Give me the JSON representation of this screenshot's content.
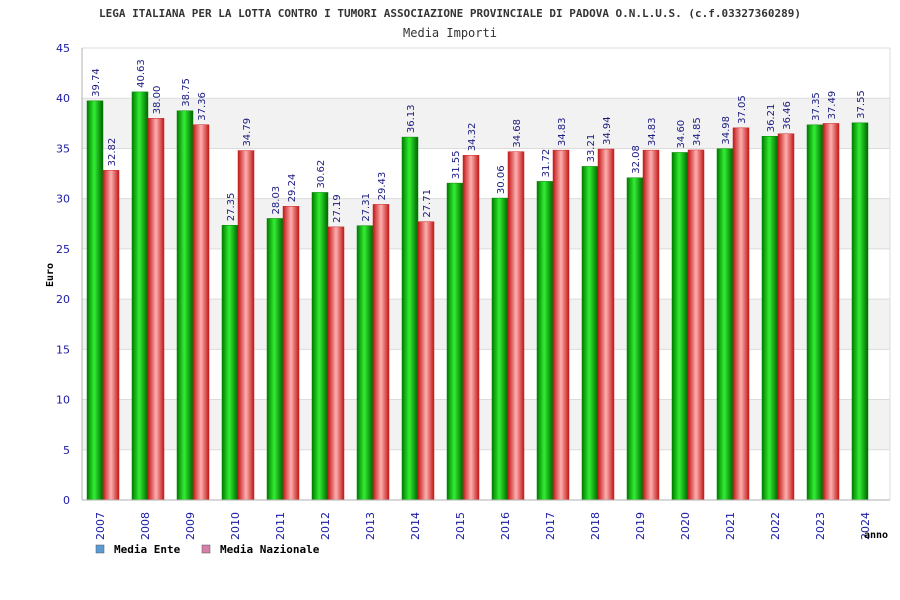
{
  "chart_data": {
    "type": "bar",
    "title": "LEGA ITALIANA PER LA LOTTA CONTRO I TUMORI ASSOCIAZIONE PROVINCIALE DI PADOVA O.N.L.U.S. (c.f.03327360289)",
    "subtitle": "Media Importi",
    "xlabel": "anno",
    "ylabel": "Euro",
    "ylim": [
      0,
      45
    ],
    "yticks": [
      0,
      5,
      10,
      15,
      20,
      25,
      30,
      35,
      40,
      45
    ],
    "categories": [
      "2007",
      "2008",
      "2009",
      "2010",
      "2011",
      "2012",
      "2013",
      "2014",
      "2015",
      "2016",
      "2017",
      "2018",
      "2019",
      "2020",
      "2021",
      "2022",
      "2023",
      "2024"
    ],
    "series": [
      {
        "name": "Media Ente",
        "legend_color": "#5b9bd5",
        "bar_color": "#00b000",
        "values": [
          39.74,
          40.63,
          38.75,
          27.35,
          28.03,
          30.62,
          27.31,
          36.13,
          31.55,
          30.06,
          31.72,
          33.21,
          32.08,
          34.6,
          34.98,
          36.21,
          37.35,
          37.55
        ],
        "labels": [
          "39.74",
          "40.63",
          "38.75",
          "27.35",
          "28.03",
          "30.62",
          "27.31",
          "36.13",
          "31.55",
          "30.06",
          "31.72",
          "33.21",
          "32.08",
          "34.60",
          "34.98",
          "36.21",
          "37.35",
          "37.55"
        ]
      },
      {
        "name": "Media Nazionale",
        "legend_color": "#d67fa8",
        "bar_color": "#e04040",
        "values": [
          32.82,
          38.0,
          37.36,
          34.79,
          29.24,
          27.19,
          29.43,
          27.71,
          34.32,
          34.68,
          34.83,
          34.94,
          34.83,
          34.85,
          37.05,
          36.46,
          37.49,
          null
        ],
        "labels": [
          "32.82",
          "38.00",
          "37.36",
          "34.79",
          "29.24",
          "27.19",
          "29.43",
          "27.71",
          "34.32",
          "34.68",
          "34.83",
          "34.94",
          "34.83",
          "34.85",
          "37.05",
          "36.46",
          "37.49",
          ""
        ]
      }
    ],
    "legend_position": "bottom-left",
    "grid": true
  }
}
